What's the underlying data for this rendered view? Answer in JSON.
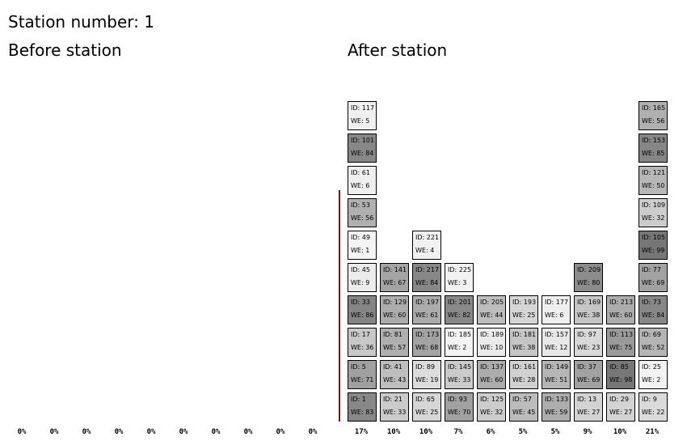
{
  "title": "Station number: 1",
  "before_label": "Before station",
  "after_label": "After station",
  "before_percents": [
    "0%",
    "0%",
    "0%",
    "0%",
    "0%",
    "0%",
    "0%",
    "0%",
    "0%",
    "0%"
  ],
  "after_columns": [
    {
      "percent": "17%",
      "boxes": [
        {
          "id": "ID: 1",
          "we": "WE: 83",
          "color": "#888888"
        },
        {
          "id": "ID: 5",
          "we": "WE: 71",
          "color": "#a0a0a0"
        },
        {
          "id": "ID: 17",
          "we": "WE: 36",
          "color": "#c8c8c8"
        },
        {
          "id": "ID: 33",
          "we": "WE: 86",
          "color": "#858585"
        },
        {
          "id": "ID: 45",
          "we": "WE: 9",
          "color": "#ececec"
        },
        {
          "id": "ID: 49",
          "we": "WE: 1",
          "color": "#f4f4f4"
        },
        {
          "id": "ID: 53",
          "we": "WE: 56",
          "color": "#b0b0b0"
        },
        {
          "id": "ID: 61",
          "we": "WE: 6",
          "color": "#efefef"
        },
        {
          "id": "ID: 101",
          "we": "WE: 84",
          "color": "#878787"
        },
        {
          "id": "ID: 117",
          "we": "WE: 5",
          "color": "#f0f0f0"
        }
      ]
    },
    {
      "percent": "10%",
      "boxes": [
        {
          "id": "ID: 21",
          "we": "WE: 33",
          "color": "#cbcbcb"
        },
        {
          "id": "ID: 41",
          "we": "WE: 43",
          "color": "#bebebe"
        },
        {
          "id": "ID: 81",
          "we": "WE: 57",
          "color": "#afafaf"
        },
        {
          "id": "ID: 129",
          "we": "WE: 60",
          "color": "#acacac"
        },
        {
          "id": "ID: 141",
          "we": "WE: 67",
          "color": "#a4a4a4"
        }
      ]
    },
    {
      "percent": "10%",
      "boxes": [
        {
          "id": "ID: 65",
          "we": "WE: 25",
          "color": "#d6d6d6"
        },
        {
          "id": "ID: 89",
          "we": "WE: 19",
          "color": "#dddddd"
        },
        {
          "id": "ID: 173",
          "we": "WE: 68",
          "color": "#a3a3a3"
        },
        {
          "id": "ID: 197",
          "we": "WE: 61",
          "color": "#ababab"
        },
        {
          "id": "ID: 217",
          "we": "WE: 84",
          "color": "#878787"
        },
        {
          "id": "ID: 221",
          "we": "WE: 4",
          "color": "#f1f1f1"
        }
      ]
    },
    {
      "percent": "7%",
      "boxes": [
        {
          "id": "ID: 93",
          "we": "WE: 70",
          "color": "#a1a1a1"
        },
        {
          "id": "ID: 145",
          "we": "WE: 33",
          "color": "#cbcbcb"
        },
        {
          "id": "ID: 185",
          "we": "WE: 2",
          "color": "#f3f3f3"
        },
        {
          "id": "ID: 201",
          "we": "WE: 82",
          "color": "#898989"
        },
        {
          "id": "ID: 225",
          "we": "WE: 3",
          "color": "#f2f2f2"
        }
      ]
    },
    {
      "percent": "6%",
      "boxes": [
        {
          "id": "ID: 125",
          "we": "WE: 32",
          "color": "#cccccc"
        },
        {
          "id": "ID: 137",
          "we": "WE: 60",
          "color": "#acacac"
        },
        {
          "id": "ID: 189",
          "we": "WE: 10",
          "color": "#ebebeb"
        },
        {
          "id": "ID: 205",
          "we": "WE: 44",
          "color": "#bdbdbd"
        }
      ]
    },
    {
      "percent": "5%",
      "boxes": [
        {
          "id": "ID: 57",
          "we": "WE: 45",
          "color": "#bcbcbc"
        },
        {
          "id": "ID: 161",
          "we": "WE: 28",
          "color": "#d1d1d1"
        },
        {
          "id": "ID: 181",
          "we": "WE: 38",
          "color": "#c5c5c5"
        },
        {
          "id": "ID: 193",
          "we": "WE: 25",
          "color": "#d6d6d6"
        }
      ]
    },
    {
      "percent": "5%",
      "boxes": [
        {
          "id": "ID: 133",
          "we": "WE: 59",
          "color": "#adadad"
        },
        {
          "id": "ID: 149",
          "we": "WE: 51",
          "color": "#b6b6b6"
        },
        {
          "id": "ID: 157",
          "we": "WE: 12",
          "color": "#e8e8e8"
        },
        {
          "id": "ID: 177",
          "we": "WE: 6",
          "color": "#efefef"
        }
      ]
    },
    {
      "percent": "9%",
      "boxes": [
        {
          "id": "ID: 13",
          "we": "WE: 27",
          "color": "#d3d3d3"
        },
        {
          "id": "ID: 37",
          "we": "WE: 69",
          "color": "#a2a2a2"
        },
        {
          "id": "ID: 97",
          "we": "WE: 23",
          "color": "#d8d8d8"
        },
        {
          "id": "ID: 169",
          "we": "WE: 38",
          "color": "#c5c5c5"
        },
        {
          "id": "ID: 209",
          "we": "WE: 80",
          "color": "#8c8c8c"
        }
      ]
    },
    {
      "percent": "10%",
      "boxes": [
        {
          "id": "ID: 29",
          "we": "WE: 27",
          "color": "#d3d3d3"
        },
        {
          "id": "ID: 85",
          "we": "WE: 98",
          "color": "#777777"
        },
        {
          "id": "ID: 113",
          "we": "WE: 75",
          "color": "#9a9a9a"
        },
        {
          "id": "ID: 213",
          "we": "WE: 60",
          "color": "#acacac"
        }
      ]
    },
    {
      "percent": "21%",
      "boxes": [
        {
          "id": "ID: 9",
          "we": "WE: 22",
          "color": "#dadada"
        },
        {
          "id": "ID: 25",
          "we": "WE: 2",
          "color": "#f3f3f3"
        },
        {
          "id": "ID: 69",
          "we": "WE: 52",
          "color": "#b5b5b5"
        },
        {
          "id": "ID: 73",
          "we": "WE: 84",
          "color": "#878787"
        },
        {
          "id": "ID: 77",
          "we": "WE: 69",
          "color": "#a2a2a2"
        },
        {
          "id": "ID: 105",
          "we": "WE: 99",
          "color": "#767676"
        },
        {
          "id": "ID: 109",
          "we": "WE: 32",
          "color": "#cccccc"
        },
        {
          "id": "ID: 121",
          "we": "WE: 50",
          "color": "#b7b7b7"
        },
        {
          "id": "ID: 153",
          "we": "WE: 85",
          "color": "#868686"
        },
        {
          "id": "ID: 165",
          "we": "WE: 56",
          "color": "#b0b0b0"
        }
      ]
    }
  ]
}
